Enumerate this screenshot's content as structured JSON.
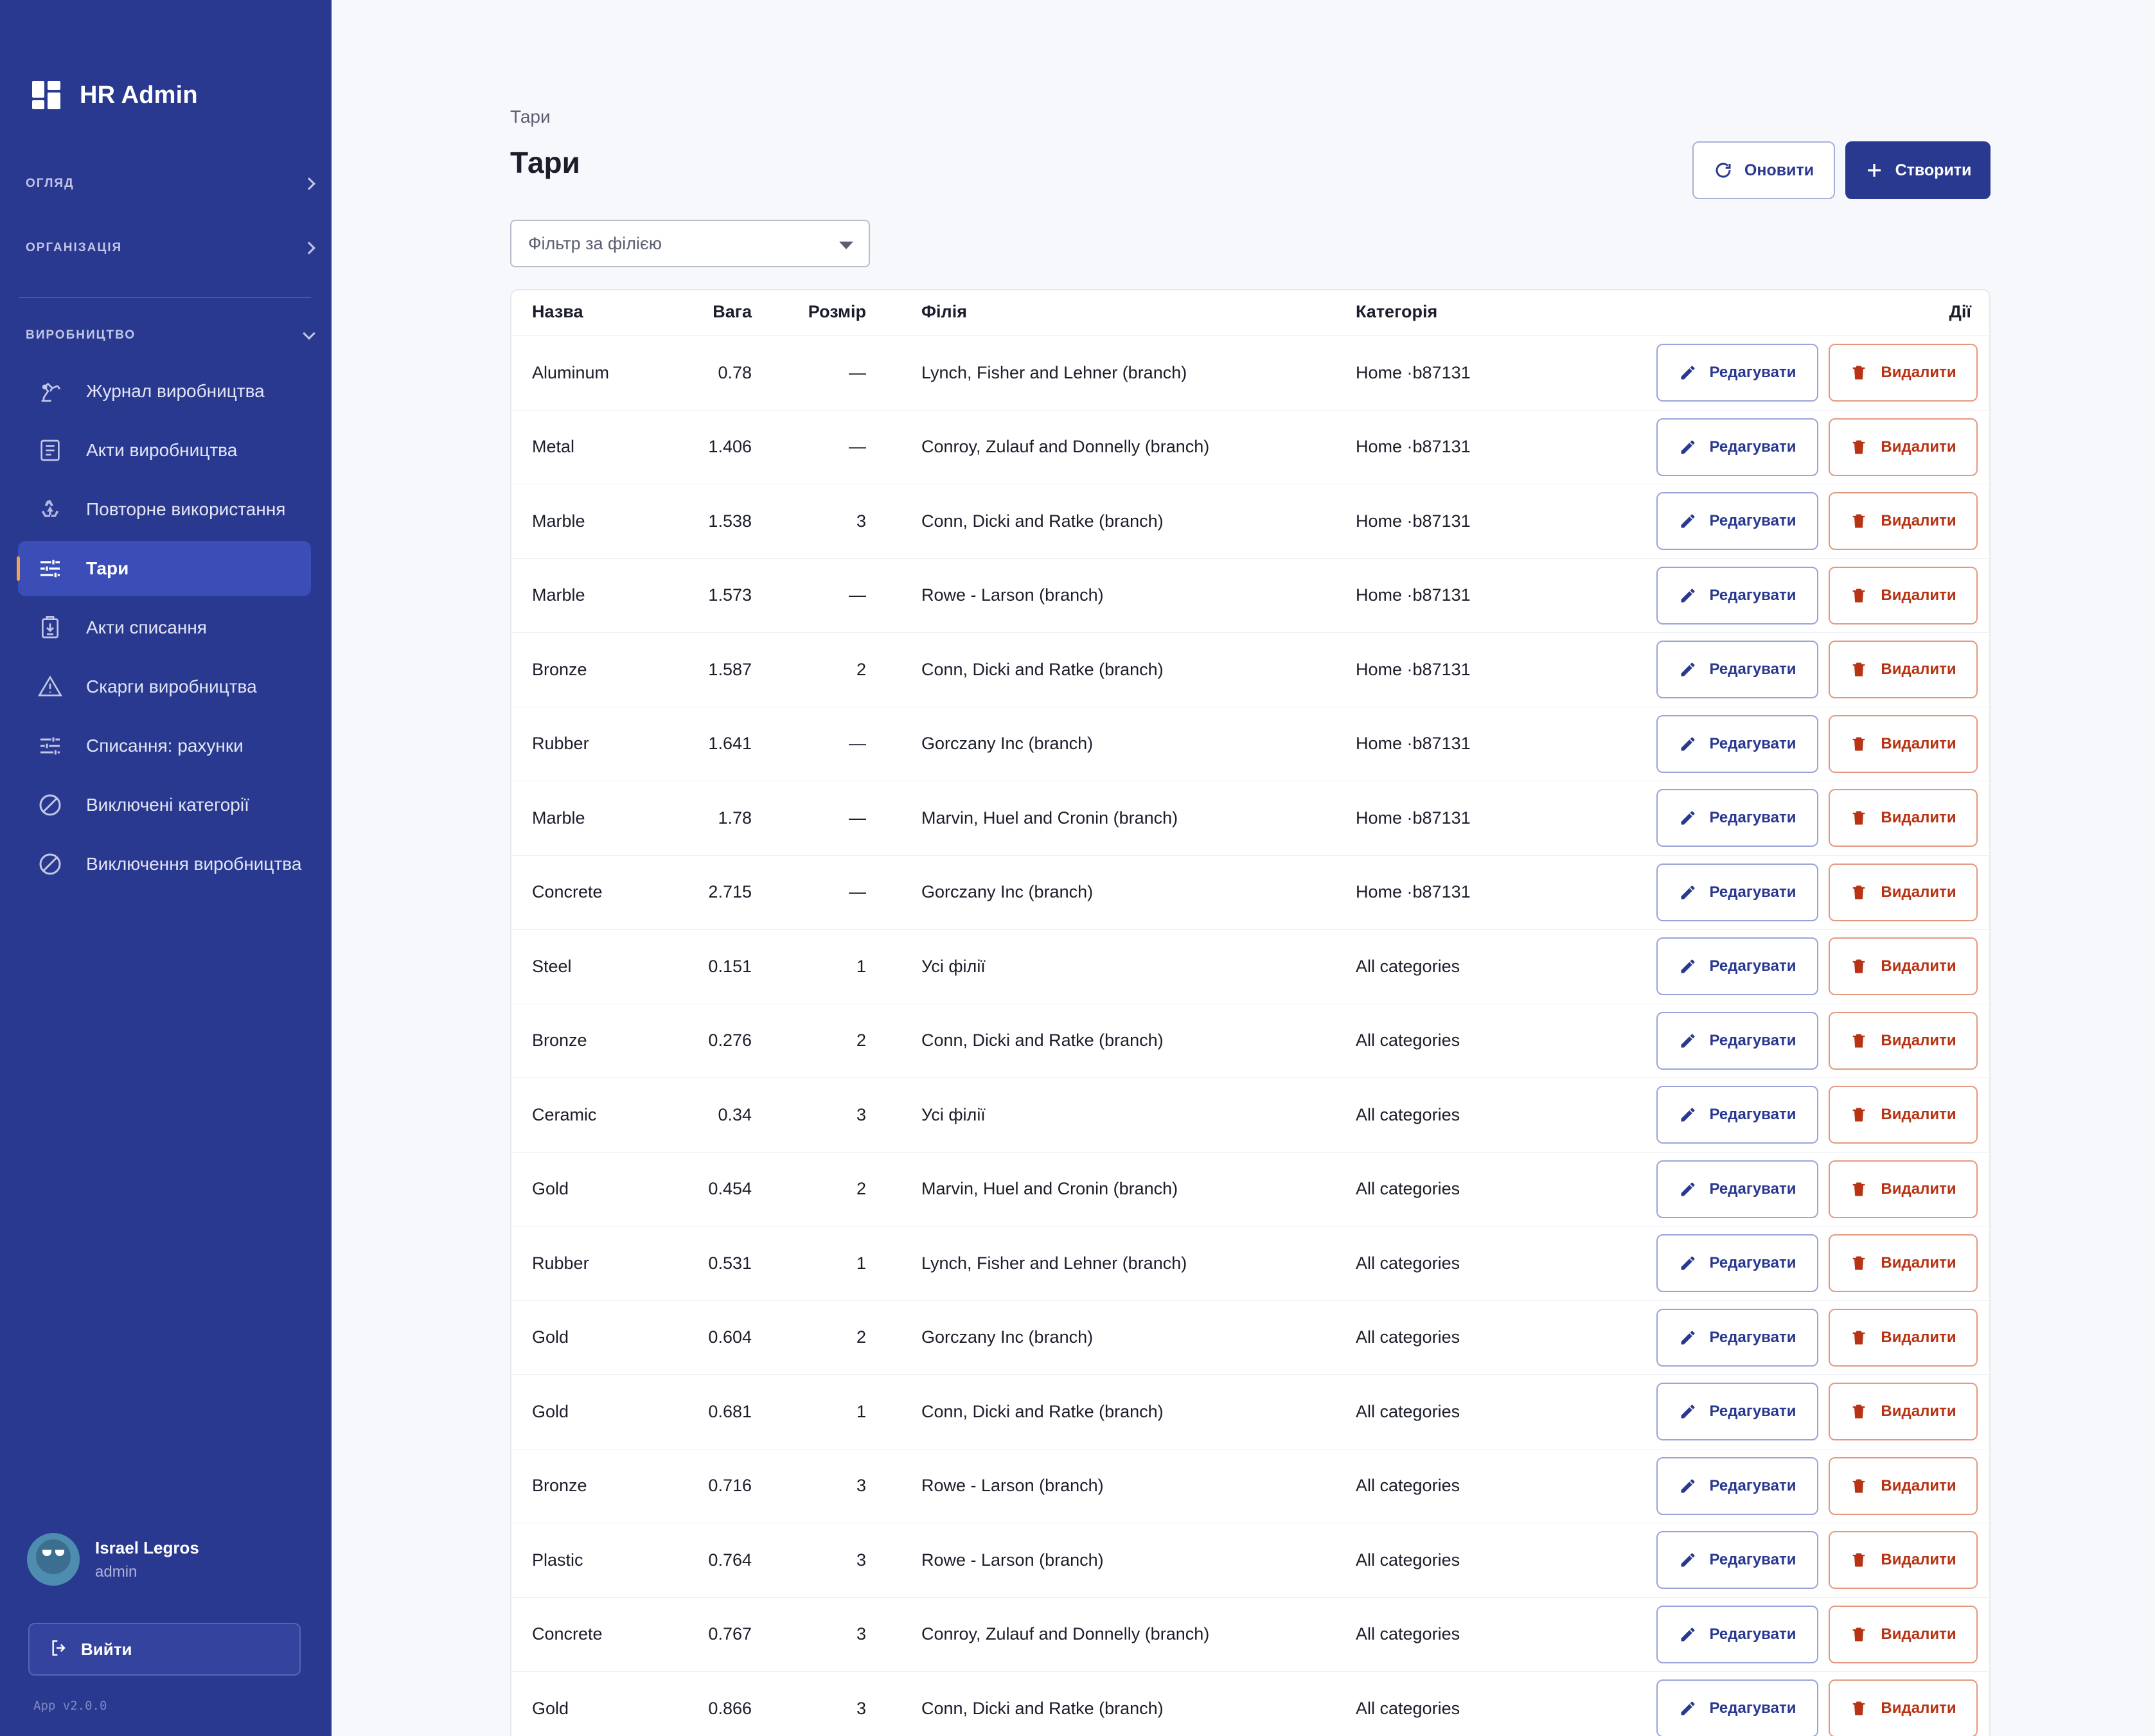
{
  "app": {
    "title": "HR Admin",
    "version": "App v2.0.0"
  },
  "sidebar": {
    "sections": [
      {
        "label": "ОГЛЯД"
      },
      {
        "label": "ОРГАНІЗАЦІЯ"
      },
      {
        "label": "ВИРОБНИЦТВО"
      }
    ],
    "items": [
      {
        "label": "Журнал виробництва",
        "icon": "robot-arm-icon"
      },
      {
        "label": "Акти виробництва",
        "icon": "document-icon"
      },
      {
        "label": "Повторне використання",
        "icon": "recycle-icon"
      },
      {
        "label": "Тари",
        "icon": "sliders-icon",
        "active": true
      },
      {
        "label": "Акти списання",
        "icon": "clipboard-download-icon"
      },
      {
        "label": "Скарги виробництва",
        "icon": "warning-icon"
      },
      {
        "label": "Списання: рахунки",
        "icon": "sliders-icon"
      },
      {
        "label": "Виключені категорії",
        "icon": "block-icon"
      },
      {
        "label": "Виключення виробництва",
        "icon": "block-icon"
      }
    ],
    "user": {
      "name": "Israel Legros",
      "role": "admin"
    },
    "logout_label": "Вийти"
  },
  "header": {
    "breadcrumb": "Тари",
    "title": "Тари",
    "refresh_label": "Оновити",
    "create_label": "Створити",
    "filter_placeholder": "Фільтр за філією"
  },
  "table": {
    "columns": {
      "name": "Назва",
      "weight": "Вага",
      "size": "Розмір",
      "branch": "Філія",
      "category": "Категорія",
      "actions": "Дії"
    },
    "edit_label": "Редагувати",
    "delete_label": "Видалити",
    "rows": [
      {
        "name": "Aluminum",
        "weight": "0.78",
        "size": "—",
        "branch": "Lynch, Fisher and Lehner (branch)",
        "category": "Home ·b87131"
      },
      {
        "name": "Metal",
        "weight": "1.406",
        "size": "—",
        "branch": "Conroy, Zulauf and Donnelly (branch)",
        "category": "Home ·b87131"
      },
      {
        "name": "Marble",
        "weight": "1.538",
        "size": "3",
        "branch": "Conn, Dicki and Ratke (branch)",
        "category": "Home ·b87131"
      },
      {
        "name": "Marble",
        "weight": "1.573",
        "size": "—",
        "branch": "Rowe - Larson (branch)",
        "category": "Home ·b87131"
      },
      {
        "name": "Bronze",
        "weight": "1.587",
        "size": "2",
        "branch": "Conn, Dicki and Ratke (branch)",
        "category": "Home ·b87131"
      },
      {
        "name": "Rubber",
        "weight": "1.641",
        "size": "—",
        "branch": "Gorczany Inc (branch)",
        "category": "Home ·b87131"
      },
      {
        "name": "Marble",
        "weight": "1.78",
        "size": "—",
        "branch": "Marvin, Huel and Cronin (branch)",
        "category": "Home ·b87131"
      },
      {
        "name": "Concrete",
        "weight": "2.715",
        "size": "—",
        "branch": "Gorczany Inc (branch)",
        "category": "Home ·b87131"
      },
      {
        "name": "Steel",
        "weight": "0.151",
        "size": "1",
        "branch": "Усі філії",
        "category": "All categories"
      },
      {
        "name": "Bronze",
        "weight": "0.276",
        "size": "2",
        "branch": "Conn, Dicki and Ratke (branch)",
        "category": "All categories"
      },
      {
        "name": "Ceramic",
        "weight": "0.34",
        "size": "3",
        "branch": "Усі філії",
        "category": "All categories"
      },
      {
        "name": "Gold",
        "weight": "0.454",
        "size": "2",
        "branch": "Marvin, Huel and Cronin (branch)",
        "category": "All categories"
      },
      {
        "name": "Rubber",
        "weight": "0.531",
        "size": "1",
        "branch": "Lynch, Fisher and Lehner (branch)",
        "category": "All categories"
      },
      {
        "name": "Gold",
        "weight": "0.604",
        "size": "2",
        "branch": "Gorczany Inc (branch)",
        "category": "All categories"
      },
      {
        "name": "Gold",
        "weight": "0.681",
        "size": "1",
        "branch": "Conn, Dicki and Ratke (branch)",
        "category": "All categories"
      },
      {
        "name": "Bronze",
        "weight": "0.716",
        "size": "3",
        "branch": "Rowe - Larson (branch)",
        "category": "All categories"
      },
      {
        "name": "Plastic",
        "weight": "0.764",
        "size": "3",
        "branch": "Rowe - Larson (branch)",
        "category": "All categories"
      },
      {
        "name": "Concrete",
        "weight": "0.767",
        "size": "3",
        "branch": "Conroy, Zulauf and Donnelly (branch)",
        "category": "All categories"
      },
      {
        "name": "Gold",
        "weight": "0.866",
        "size": "3",
        "branch": "Conn, Dicki and Ratke (branch)",
        "category": "All categories"
      }
    ]
  },
  "colors": {
    "sidebar": "#2a3990",
    "active_item": "#3b4db6",
    "accent_bar": "#f4a34b",
    "primary": "#2a3990",
    "danger": "#b73314"
  }
}
